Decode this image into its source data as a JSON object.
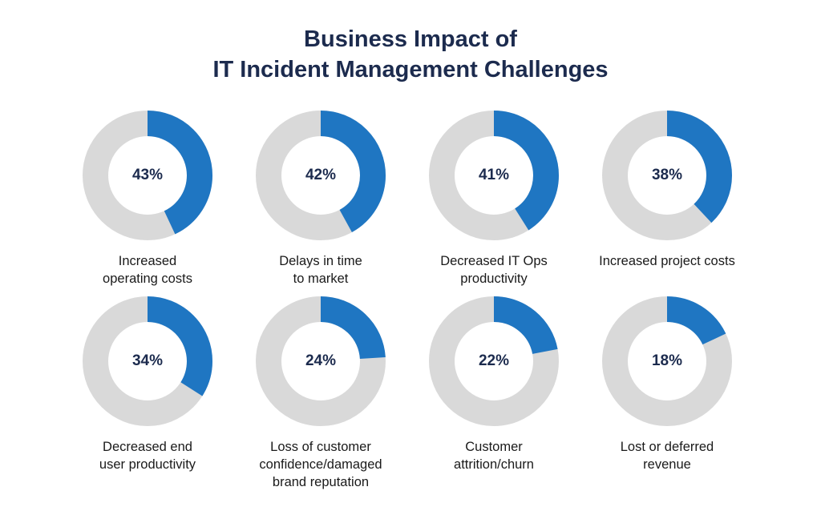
{
  "title": {
    "line1": "Business Impact of",
    "line2": "IT Incident Management Challenges"
  },
  "colors": {
    "value": "#1f76c2",
    "remainder": "#d9d9d9",
    "title": "#1c2b4e"
  },
  "chart_data": {
    "type": "pie",
    "variant": "donut",
    "title": "Business Impact of IT Incident Management Challenges",
    "unit": "%",
    "items": [
      {
        "label": "Increased operating costs",
        "label_lines": [
          "Increased",
          "operating costs"
        ],
        "value": 43,
        "display": "43%"
      },
      {
        "label": "Delays in time to market",
        "label_lines": [
          "Delays in time",
          "to market"
        ],
        "value": 42,
        "display": "42%"
      },
      {
        "label": "Decreased IT Ops productivity",
        "label_lines": [
          "Decreased IT Ops",
          "productivity"
        ],
        "value": 41,
        "display": "41%"
      },
      {
        "label": "Increased project costs",
        "label_lines": [
          "Increased project costs"
        ],
        "value": 38,
        "display": "38%"
      },
      {
        "label": "Decreased end user productivity",
        "label_lines": [
          "Decreased end",
          "user productivity"
        ],
        "value": 34,
        "display": "34%"
      },
      {
        "label": "Loss of customer confidence/damaged brand reputation",
        "label_lines": [
          "Loss of customer",
          "confidence/damaged",
          "brand reputation"
        ],
        "value": 24,
        "display": "24%"
      },
      {
        "label": "Customer attrition/churn",
        "label_lines": [
          "Customer",
          "attrition/churn"
        ],
        "value": 22,
        "display": "22%"
      },
      {
        "label": "Lost or deferred revenue",
        "label_lines": [
          "Lost or deferred",
          "revenue"
        ],
        "value": 18,
        "display": "18%"
      }
    ]
  }
}
